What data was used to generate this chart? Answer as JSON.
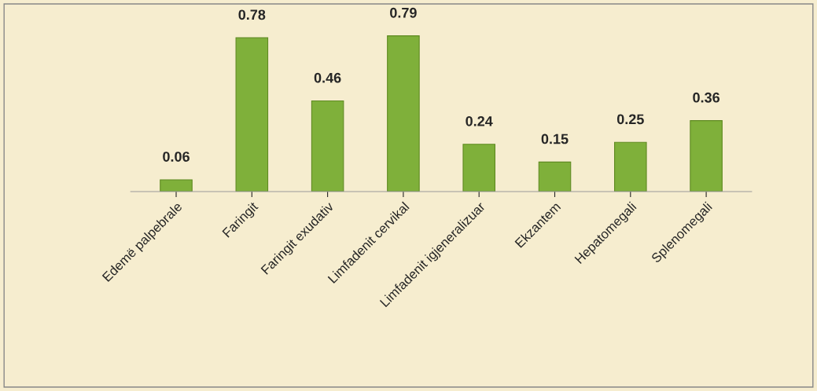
{
  "chart_data": {
    "type": "bar",
    "categories": [
      "Edemë palpebrale",
      "Faringit",
      "Faringit exudativ",
      "Limfadenit cervikal",
      "Limfadenit igjeneralizuar",
      "Ekzantem",
      "Hepatomegali",
      "Splenomegali"
    ],
    "values": [
      0.06,
      0.78,
      0.46,
      0.79,
      0.24,
      0.15,
      0.25,
      0.36
    ],
    "color": "#7fb03a",
    "data_labels": true,
    "grid": false,
    "legend": false
  }
}
